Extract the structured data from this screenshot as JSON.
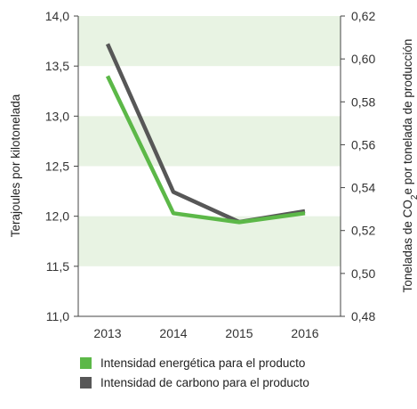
{
  "chart_data": {
    "type": "line",
    "categories": [
      "2013",
      "2014",
      "2015",
      "2016"
    ],
    "left_axis": {
      "label": "Terajoules por kilotonelada",
      "ylim": [
        11.0,
        14.0
      ],
      "ticks": [
        "11,0",
        "11,5",
        "12,0",
        "12,5",
        "13,0",
        "13,5",
        "14,0"
      ]
    },
    "right_axis": {
      "label_pre": "Toneladas de CO",
      "label_sub": "2",
      "label_post": "e por tonelada de producción",
      "ylim": [
        0.48,
        0.62
      ],
      "ticks": [
        "0,48",
        "0,50",
        "0,52",
        "0,54",
        "0,56",
        "0,58",
        "0,60",
        "0,62"
      ]
    },
    "background_bands": [
      [
        11.5,
        12.0
      ],
      [
        12.5,
        13.0
      ],
      [
        13.5,
        14.0
      ]
    ],
    "band_color": "#e8f3e3",
    "series": [
      {
        "name": "Intensidad energética para el producto",
        "axis": "left",
        "color": "#5cb848",
        "values": [
          13.4,
          12.03,
          11.94,
          12.03
        ]
      },
      {
        "name": "Intensidad de carbono para el producto",
        "axis": "right",
        "color": "#575757",
        "values": [
          0.607,
          0.538,
          0.524,
          0.529
        ]
      }
    ],
    "legend_position": "bottom"
  }
}
